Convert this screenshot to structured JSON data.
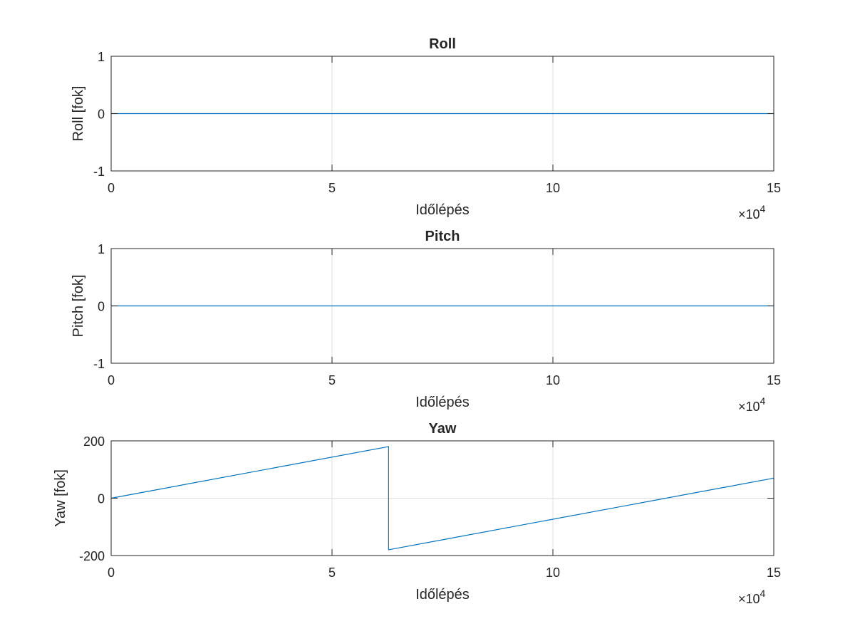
{
  "chart_data": [
    {
      "type": "line",
      "title": "Roll",
      "xlabel": "Időlépés",
      "ylabel": "Roll [fok]",
      "x_multiplier": "×10",
      "x_exponent": "4",
      "xlim": [
        0,
        15
      ],
      "ylim": [
        -1,
        1
      ],
      "xticks": [
        0,
        5,
        10,
        15
      ],
      "xtick_labels": [
        "0",
        "5",
        "10",
        "15"
      ],
      "yticks": [
        -1,
        0,
        1
      ],
      "ytick_labels": [
        "-1",
        "0",
        "1"
      ],
      "grid": true,
      "series": [
        {
          "color": "#0072bd",
          "x": [
            0,
            15
          ],
          "y": [
            0,
            0
          ]
        }
      ]
    },
    {
      "type": "line",
      "title": "Pitch",
      "xlabel": "Időlépés",
      "ylabel": "Pitch [fok]",
      "x_multiplier": "×10",
      "x_exponent": "4",
      "xlim": [
        0,
        15
      ],
      "ylim": [
        -1,
        1
      ],
      "xticks": [
        0,
        5,
        10,
        15
      ],
      "xtick_labels": [
        "0",
        "5",
        "10",
        "15"
      ],
      "yticks": [
        -1,
        0,
        1
      ],
      "ytick_labels": [
        "-1",
        "0",
        "1"
      ],
      "grid": true,
      "series": [
        {
          "color": "#0072bd",
          "x": [
            0,
            15
          ],
          "y": [
            0,
            0
          ]
        }
      ]
    },
    {
      "type": "line",
      "title": "Yaw",
      "xlabel": "Időlépés",
      "ylabel": "Yaw [fok]",
      "x_multiplier": "×10",
      "x_exponent": "4",
      "xlim": [
        0,
        15
      ],
      "ylim": [
        -200,
        200
      ],
      "xticks": [
        0,
        5,
        10,
        15
      ],
      "xtick_labels": [
        "0",
        "5",
        "10",
        "15"
      ],
      "yticks": [
        -200,
        0,
        200
      ],
      "ytick_labels": [
        "-200",
        "0",
        "200"
      ],
      "grid": true,
      "series": [
        {
          "color": "#0072bd",
          "x": [
            0,
            6.28,
            6.28,
            15
          ],
          "y": [
            0,
            180,
            -180,
            70
          ]
        }
      ]
    }
  ]
}
